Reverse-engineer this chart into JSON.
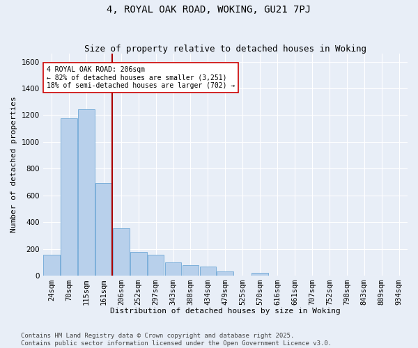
{
  "title1": "4, ROYAL OAK ROAD, WOKING, GU21 7PJ",
  "title2": "Size of property relative to detached houses in Woking",
  "xlabel": "Distribution of detached houses by size in Woking",
  "ylabel": "Number of detached properties",
  "bar_labels": [
    "24sqm",
    "70sqm",
    "115sqm",
    "161sqm",
    "206sqm",
    "252sqm",
    "297sqm",
    "343sqm",
    "388sqm",
    "434sqm",
    "479sqm",
    "525sqm",
    "570sqm",
    "616sqm",
    "661sqm",
    "707sqm",
    "752sqm",
    "798sqm",
    "843sqm",
    "889sqm",
    "934sqm"
  ],
  "bar_values": [
    155,
    1175,
    1245,
    690,
    355,
    175,
    155,
    100,
    80,
    65,
    30,
    0,
    20,
    0,
    0,
    0,
    0,
    0,
    0,
    0,
    0
  ],
  "bar_color": "#b8d0eb",
  "bar_edge_color": "#6fa8d6",
  "annotation_line1": "4 ROYAL OAK ROAD: 206sqm",
  "annotation_line2": "← 82% of detached houses are smaller (3,251)",
  "annotation_line3": "18% of semi-detached houses are larger (702) →",
  "vline_color": "#aa0000",
  "vline_x_index": 4,
  "ylim": [
    0,
    1660
  ],
  "yticks": [
    0,
    200,
    400,
    600,
    800,
    1000,
    1200,
    1400,
    1600
  ],
  "annotation_box_color": "#cc0000",
  "footer1": "Contains HM Land Registry data © Crown copyright and database right 2025.",
  "footer2": "Contains public sector information licensed under the Open Government Licence v3.0.",
  "bg_color": "#e8eef7",
  "grid_color": "#ffffff",
  "title_fontsize": 10,
  "subtitle_fontsize": 9,
  "axis_label_fontsize": 8,
  "tick_fontsize": 7.5,
  "annotation_fontsize": 7,
  "footer_fontsize": 6.5
}
